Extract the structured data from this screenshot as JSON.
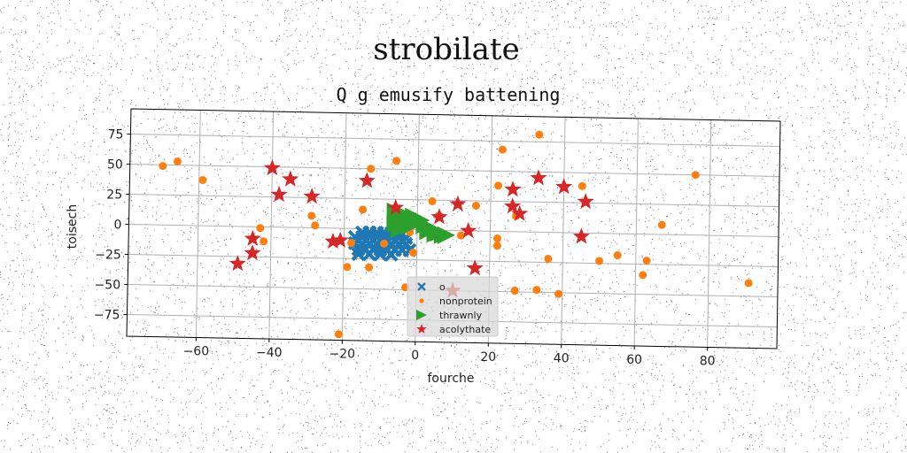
{
  "chart_data": {
    "type": "scatter",
    "suptitle": "strobilate",
    "title": "Q g emusify battening",
    "xlabel": "fourche",
    "ylabel": "toisech",
    "xlim": [
      -79,
      99
    ],
    "ylim": [
      -93,
      96
    ],
    "xticks": [
      -60,
      -40,
      -20,
      0,
      20,
      40,
      60,
      80
    ],
    "yticks": [
      75,
      50,
      25,
      0,
      -25,
      -50,
      -75
    ],
    "grid": true,
    "legend_position": "lower center",
    "series": [
      {
        "name": "o",
        "marker": "X",
        "color": "#1f77b4",
        "points": [
          [
            -17,
            -12
          ],
          [
            -15,
            -12
          ],
          [
            -13,
            -12
          ],
          [
            -11,
            -12
          ],
          [
            -9,
            -12
          ],
          [
            -7,
            -12
          ],
          [
            -5,
            -12
          ],
          [
            -3,
            -12
          ],
          [
            -17,
            -7
          ],
          [
            -15,
            -7
          ],
          [
            -13,
            -7
          ],
          [
            -11,
            -7
          ],
          [
            -9,
            -7
          ],
          [
            -7,
            -7
          ],
          [
            -5,
            -7
          ],
          [
            -3,
            -7
          ],
          [
            -16,
            -17
          ],
          [
            -14,
            -17
          ],
          [
            -12,
            -17
          ],
          [
            -10,
            -17
          ],
          [
            -8,
            -17
          ],
          [
            -6,
            -17
          ],
          [
            -4,
            -17
          ],
          [
            -2,
            -17
          ],
          [
            -15,
            -3
          ],
          [
            -13,
            -3
          ],
          [
            -11,
            -3
          ],
          [
            -9,
            -3
          ],
          [
            -7,
            -3
          ],
          [
            -5,
            -3
          ],
          [
            -16,
            -21
          ],
          [
            -13,
            -21
          ],
          [
            -10,
            -21
          ],
          [
            -7,
            -21
          ]
        ]
      },
      {
        "name": "nonprotein",
        "marker": "o",
        "color": "#ff7f0e",
        "points": [
          [
            -70,
            49
          ],
          [
            -66,
            53
          ],
          [
            -59,
            38
          ],
          [
            -42,
            -12
          ],
          [
            -43,
            -1
          ],
          [
            -29,
            10
          ],
          [
            -28,
            2
          ],
          [
            -19,
            -32
          ],
          [
            -15,
            16
          ],
          [
            -13,
            50
          ],
          [
            -13,
            -32
          ],
          [
            -6,
            57
          ],
          [
            -3,
            -48
          ],
          [
            -1,
            -19
          ],
          [
            4,
            24
          ],
          [
            12,
            -4
          ],
          [
            16,
            21
          ],
          [
            22,
            38
          ],
          [
            22,
            -6
          ],
          [
            22,
            -12
          ],
          [
            23,
            68
          ],
          [
            27,
            -49
          ],
          [
            27,
            13
          ],
          [
            33,
            81
          ],
          [
            33,
            -48
          ],
          [
            36,
            -22
          ],
          [
            39,
            -51
          ],
          [
            45,
            39
          ],
          [
            50,
            -23
          ],
          [
            55,
            -18
          ],
          [
            62,
            -34
          ],
          [
            63,
            -22
          ],
          [
            67,
            8
          ],
          [
            76,
            50
          ],
          [
            91,
            -39
          ],
          [
            -21,
            -88
          ],
          [
            -18,
            -12
          ],
          [
            -9,
            -12
          ],
          [
            -2,
            -2
          ],
          [
            6,
            12
          ]
        ]
      },
      {
        "name": "thrawnly",
        "marker": ">",
        "color": "#2ca02c",
        "points": [
          [
            -6,
            15
          ],
          [
            -6,
            5
          ],
          [
            -5,
            10
          ],
          [
            -5,
            0
          ],
          [
            -4,
            13
          ],
          [
            -3,
            7
          ],
          [
            -2,
            3
          ],
          [
            -1,
            11
          ],
          [
            0,
            6
          ],
          [
            1,
            8
          ],
          [
            2,
            4
          ],
          [
            3,
            -1
          ],
          [
            4,
            1
          ],
          [
            5,
            -3
          ],
          [
            6,
            -2
          ],
          [
            7,
            -4
          ],
          [
            8,
            -4
          ]
        ]
      },
      {
        "name": "acolythate",
        "marker": "*",
        "color": "#d62728",
        "points": [
          [
            -40,
            49
          ],
          [
            -35,
            40
          ],
          [
            -38,
            27
          ],
          [
            -29,
            26
          ],
          [
            -21,
            -10
          ],
          [
            -23,
            -11
          ],
          [
            -14,
            40
          ],
          [
            -45,
            -10
          ],
          [
            -45,
            -22
          ],
          [
            -49,
            -31
          ],
          [
            -6,
            18
          ],
          [
            6,
            11
          ],
          [
            11,
            22
          ],
          [
            14,
            0
          ],
          [
            16,
            -31
          ],
          [
            26,
            35
          ],
          [
            26,
            21
          ],
          [
            28,
            15
          ],
          [
            33,
            45
          ],
          [
            40,
            38
          ],
          [
            45,
            -3
          ],
          [
            46,
            26
          ],
          [
            10,
            -50
          ]
        ]
      }
    ]
  }
}
